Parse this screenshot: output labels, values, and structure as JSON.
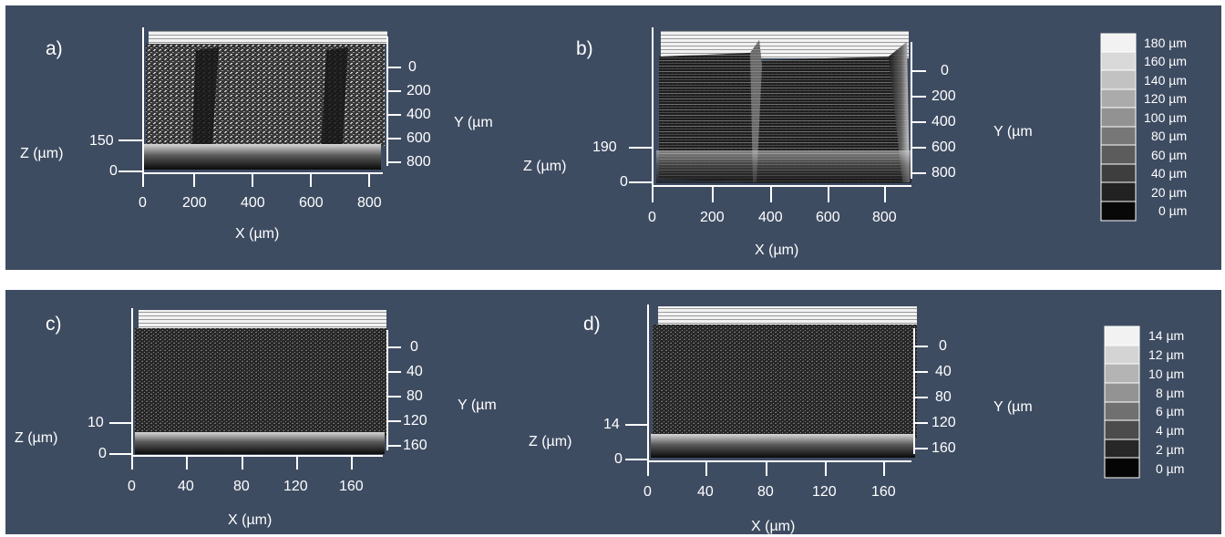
{
  "colors": {
    "background": "#3e4c62",
    "axis": "#ffffff",
    "text": "#ffffff"
  },
  "top_row": {
    "legend": [
      "180 µm",
      "160 µm",
      "140 µm",
      "120 µm",
      "100 µm",
      "80 µm",
      "60 µm",
      "40 µm",
      "20 µm",
      "0 µm"
    ],
    "panels": [
      {
        "id": "a)",
        "z_label": "Z (µm)",
        "z_ticks": [
          "150",
          "0"
        ],
        "x_label": "X (µm)",
        "x_ticks": [
          "0",
          "200",
          "400",
          "600",
          "800"
        ],
        "y_label": "Y (µm",
        "y_ticks": [
          "0",
          "200",
          "400",
          "600",
          "800"
        ]
      },
      {
        "id": "b)",
        "z_label": "Z (µm)",
        "z_ticks": [
          "190",
          "0"
        ],
        "x_label": "X (µm)",
        "x_ticks": [
          "0",
          "200",
          "400",
          "600",
          "800"
        ],
        "y_label": "Y (µm",
        "y_ticks": [
          "0",
          "200",
          "400",
          "600",
          "800"
        ]
      }
    ]
  },
  "bottom_row": {
    "legend": [
      "14 µm",
      "12 µm",
      "10 µm",
      "8 µm",
      "6 µm",
      "4 µm",
      "2 µm",
      "0 µm"
    ],
    "panels": [
      {
        "id": "c)",
        "z_label": "Z (µm)",
        "z_ticks": [
          "10",
          "0"
        ],
        "x_label": "X (µm)",
        "x_ticks": [
          "0",
          "40",
          "80",
          "120",
          "160"
        ],
        "y_label": "Y (µm",
        "y_ticks": [
          "0",
          "40",
          "80",
          "120",
          "160"
        ]
      },
      {
        "id": "d)",
        "z_label": "Z (µm)",
        "z_ticks": [
          "14",
          "0"
        ],
        "x_label": "X (µm)",
        "x_ticks": [
          "0",
          "40",
          "80",
          "120",
          "160"
        ],
        "y_label": "Y (µm",
        "y_ticks": [
          "0",
          "40",
          "80",
          "120",
          "160"
        ]
      }
    ]
  }
}
